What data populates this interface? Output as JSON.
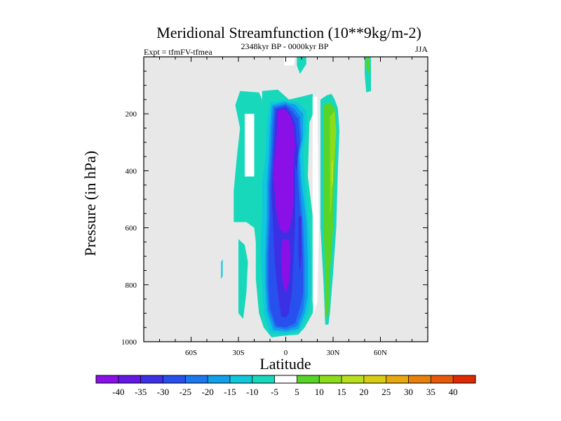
{
  "chart_data": {
    "type": "contour",
    "title": "Meridional Streamfunction (10**9kg/m-2)",
    "left_subtitle": "Expt = tfmFV-tfmea",
    "center_subtitle": "2348kyr BP - 0000kyr BP",
    "right_subtitle": "JJA",
    "xlabel": "Latitude",
    "ylabel": "Pressure (in hPa)",
    "xlim": [
      -90,
      90
    ],
    "ylim": [
      1000,
      0
    ],
    "x_ticks": [
      {
        "value": -60,
        "label": "60S"
      },
      {
        "value": -30,
        "label": "30S"
      },
      {
        "value": 0,
        "label": "0"
      },
      {
        "value": 30,
        "label": "30N"
      },
      {
        "value": 60,
        "label": "60N"
      }
    ],
    "y_ticks": [
      {
        "value": 200,
        "label": "200"
      },
      {
        "value": 400,
        "label": "400"
      },
      {
        "value": 600,
        "label": "600"
      },
      {
        "value": 800,
        "label": "800"
      },
      {
        "value": 1000,
        "label": "1000"
      }
    ],
    "background_color": "#e8e8e8",
    "colorbar": {
      "levels": [
        "-40",
        "-35",
        "-30",
        "-25",
        "-20",
        "-15",
        "-10",
        "-5",
        "5",
        "10",
        "15",
        "20",
        "25",
        "30",
        "35",
        "40"
      ],
      "colors": [
        "#8b10e8",
        "#6418e6",
        "#3c30e4",
        "#2850ee",
        "#1c78ee",
        "#12a0e8",
        "#10c8dc",
        "#18d8bc",
        "#ffffff",
        "#58d428",
        "#8cdc1c",
        "#b8e01c",
        "#d8cc14",
        "#e8a810",
        "#e8800c",
        "#e85a08",
        "#e02a04"
      ]
    },
    "regions": [
      {
        "color": "#ffffff",
        "points": [
          [
            -1,
            0
          ],
          [
            6,
            0
          ],
          [
            5,
            30
          ],
          [
            -1,
            30
          ]
        ]
      },
      {
        "color": "#18d8bc",
        "points": [
          [
            7,
            0
          ],
          [
            13,
            0
          ],
          [
            13,
            25
          ],
          [
            9,
            60
          ],
          [
            7,
            30
          ]
        ]
      },
      {
        "color": "#18d8bc",
        "points": [
          [
            50,
            0
          ],
          [
            54,
            0
          ],
          [
            54,
            120
          ],
          [
            51,
            125
          ],
          [
            50,
            60
          ]
        ]
      },
      {
        "color": "#58d428",
        "points": [
          [
            51,
            0
          ],
          [
            53,
            0
          ],
          [
            53,
            60
          ],
          [
            51,
            40
          ]
        ]
      },
      {
        "color": "#18d8bc",
        "points": [
          [
            -15,
            120
          ],
          [
            -5,
            115
          ],
          [
            2,
            150
          ],
          [
            10,
            140
          ],
          [
            17,
            130
          ],
          [
            18,
            190
          ],
          [
            15,
            230
          ],
          [
            14,
            420
          ],
          [
            18,
            600
          ],
          [
            18,
            820
          ],
          [
            17,
            900
          ],
          [
            12,
            950
          ],
          [
            8,
            975
          ],
          [
            -3,
            980
          ],
          [
            -9,
            985
          ],
          [
            -14,
            950
          ],
          [
            -17,
            900
          ],
          [
            -19,
            780
          ],
          [
            -19,
            650
          ],
          [
            -20,
            600
          ],
          [
            -25,
            580
          ],
          [
            -20,
            470
          ],
          [
            -22,
            330
          ],
          [
            -17,
            250
          ],
          [
            -15,
            180
          ]
        ]
      },
      {
        "color": "#18d8bc",
        "points": [
          [
            -29,
            120
          ],
          [
            -17,
            125
          ],
          [
            -15,
            150
          ],
          [
            -14,
            280
          ],
          [
            -17,
            470
          ],
          [
            -21,
            580
          ],
          [
            -33,
            580
          ],
          [
            -33,
            470
          ],
          [
            -31,
            350
          ],
          [
            -29,
            250
          ],
          [
            -32,
            170
          ]
        ]
      },
      {
        "color": "#ffffff",
        "points": [
          [
            -26,
            200
          ],
          [
            -20,
            200
          ],
          [
            -20,
            420
          ],
          [
            -26,
            420
          ]
        ]
      },
      {
        "color": "#18d8bc",
        "points": [
          [
            -30,
            640
          ],
          [
            -26,
            660
          ],
          [
            -24,
            720
          ],
          [
            -25,
            830
          ],
          [
            -27,
            920
          ],
          [
            -30,
            900
          ],
          [
            -30,
            780
          ]
        ]
      },
      {
        "color": "#10c8dc",
        "points": [
          [
            -41,
            720
          ],
          [
            -40,
            710
          ],
          [
            -40,
            770
          ],
          [
            -41,
            780
          ]
        ]
      },
      {
        "color": "#10c8dc",
        "points": [
          [
            -10,
            160
          ],
          [
            -2,
            152
          ],
          [
            8,
            160
          ],
          [
            13,
            190
          ],
          [
            13,
            260
          ],
          [
            11,
            330
          ],
          [
            12,
            440
          ],
          [
            14,
            560
          ],
          [
            16,
            700
          ],
          [
            16,
            830
          ],
          [
            14,
            900
          ],
          [
            9,
            960
          ],
          [
            0,
            975
          ],
          [
            -10,
            970
          ],
          [
            -14,
            900
          ],
          [
            -15,
            790
          ],
          [
            -16,
            680
          ],
          [
            -15,
            550
          ],
          [
            -15,
            440
          ],
          [
            -13,
            360
          ],
          [
            -12,
            230
          ]
        ]
      },
      {
        "color": "#12a0e8",
        "points": [
          [
            -9,
            170
          ],
          [
            -1,
            158
          ],
          [
            6,
            168
          ],
          [
            11,
            200
          ],
          [
            11,
            280
          ],
          [
            9,
            340
          ],
          [
            10,
            440
          ],
          [
            13,
            570
          ],
          [
            14,
            710
          ],
          [
            14,
            840
          ],
          [
            12,
            900
          ],
          [
            8,
            955
          ],
          [
            0,
            965
          ],
          [
            -8,
            960
          ],
          [
            -12,
            895
          ],
          [
            -13,
            800
          ],
          [
            -13,
            690
          ],
          [
            -12,
            550
          ],
          [
            -12,
            440
          ],
          [
            -11,
            360
          ],
          [
            -10,
            240
          ]
        ]
      },
      {
        "color": "#1c78ee",
        "points": [
          [
            -8,
            175
          ],
          [
            0,
            165
          ],
          [
            5,
            180
          ],
          [
            9,
            210
          ],
          [
            10,
            290
          ],
          [
            8,
            350
          ],
          [
            9,
            450
          ],
          [
            11,
            580
          ],
          [
            12,
            720
          ],
          [
            12,
            840
          ],
          [
            11,
            890
          ],
          [
            7,
            945
          ],
          [
            0,
            958
          ],
          [
            -7,
            950
          ],
          [
            -11,
            890
          ],
          [
            -12,
            800
          ],
          [
            -12,
            700
          ],
          [
            -11,
            560
          ],
          [
            -11,
            450
          ],
          [
            -10,
            370
          ],
          [
            -9,
            250
          ]
        ]
      },
      {
        "color": "#2850ee",
        "points": [
          [
            -7,
            180
          ],
          [
            0,
            170
          ],
          [
            4,
            190
          ],
          [
            8,
            220
          ],
          [
            9,
            300
          ],
          [
            7,
            360
          ],
          [
            8,
            460
          ],
          [
            10,
            590
          ],
          [
            11,
            720
          ],
          [
            11,
            830
          ],
          [
            9,
            880
          ],
          [
            6,
            935
          ],
          [
            0,
            950
          ],
          [
            -6,
            945
          ],
          [
            -10,
            885
          ],
          [
            -11,
            800
          ],
          [
            -11,
            700
          ],
          [
            -10,
            560
          ],
          [
            -10,
            450
          ],
          [
            -9,
            380
          ],
          [
            -8,
            260
          ]
        ]
      },
      {
        "color": "#3c30e4",
        "points": [
          [
            -6,
            185
          ],
          [
            0,
            176
          ],
          [
            3,
            198
          ],
          [
            6,
            235
          ],
          [
            7,
            310
          ],
          [
            6,
            370
          ],
          [
            6,
            470
          ],
          [
            6,
            580
          ],
          [
            5,
            700
          ],
          [
            4,
            820
          ],
          [
            2,
            900
          ],
          [
            0,
            915
          ],
          [
            -3,
            910
          ],
          [
            -5,
            830
          ],
          [
            -7,
            720
          ],
          [
            -8,
            600
          ],
          [
            -9,
            480
          ],
          [
            -8,
            380
          ],
          [
            -7,
            270
          ]
        ]
      },
      {
        "color": "#8b10e8",
        "points": [
          [
            -5,
            190
          ],
          [
            -1,
            182
          ],
          [
            3,
            210
          ],
          [
            5,
            250
          ],
          [
            6,
            320
          ],
          [
            5,
            380
          ],
          [
            5,
            480
          ],
          [
            4,
            560
          ],
          [
            2,
            610
          ],
          [
            -1,
            620
          ],
          [
            -4,
            600
          ],
          [
            -6,
            540
          ],
          [
            -7,
            480
          ],
          [
            -8,
            400
          ],
          [
            -6,
            300
          ]
        ]
      },
      {
        "color": "#8b10e8",
        "points": [
          [
            -2,
            640
          ],
          [
            2,
            640
          ],
          [
            3,
            700
          ],
          [
            2,
            790
          ],
          [
            0,
            830
          ],
          [
            -2,
            790
          ],
          [
            -3,
            700
          ]
        ]
      },
      {
        "color": "#3c30e4",
        "points": [
          [
            8,
            560
          ],
          [
            10,
            560
          ],
          [
            10,
            700
          ],
          [
            9,
            760
          ],
          [
            8,
            700
          ]
        ]
      },
      {
        "color": "#3c30e4",
        "points": [
          [
            5,
            340
          ],
          [
            7,
            300
          ],
          [
            8,
            330
          ],
          [
            7,
            400
          ],
          [
            6,
            380
          ]
        ]
      },
      {
        "color": "#ffffff",
        "points": [
          [
            17,
            140
          ],
          [
            20,
            140
          ],
          [
            21,
            600
          ],
          [
            20,
            860
          ],
          [
            18,
            900
          ],
          [
            17,
            860
          ],
          [
            17,
            600
          ]
        ]
      },
      {
        "color": "#18d8bc",
        "points": [
          [
            22,
            150
          ],
          [
            26,
            135
          ],
          [
            29,
            130
          ],
          [
            31,
            150
          ],
          [
            33,
            180
          ],
          [
            34,
            260
          ],
          [
            33,
            400
          ],
          [
            32,
            600
          ],
          [
            30,
            760
          ],
          [
            28,
            900
          ],
          [
            27,
            940
          ],
          [
            25,
            940
          ],
          [
            24,
            800
          ],
          [
            22,
            600
          ],
          [
            22,
            300
          ]
        ]
      },
      {
        "color": "#58d428",
        "points": [
          [
            24,
            170
          ],
          [
            28,
            160
          ],
          [
            31,
            180
          ],
          [
            32,
            260
          ],
          [
            31,
            400
          ],
          [
            30,
            600
          ],
          [
            28,
            760
          ],
          [
            27,
            900
          ],
          [
            25,
            920
          ],
          [
            25,
            760
          ],
          [
            24,
            600
          ],
          [
            24,
            300
          ]
        ]
      },
      {
        "color": "#8cdc1c",
        "points": [
          [
            28,
            210
          ],
          [
            31,
            190
          ],
          [
            32,
            260
          ],
          [
            31,
            340
          ],
          [
            30,
            420
          ],
          [
            29,
            520
          ],
          [
            28,
            560
          ],
          [
            28,
            420
          ]
        ]
      },
      {
        "color": "#b8e01c",
        "points": [
          [
            29,
            370
          ],
          [
            30,
            360
          ],
          [
            30,
            440
          ],
          [
            29,
            460
          ]
        ]
      }
    ]
  }
}
